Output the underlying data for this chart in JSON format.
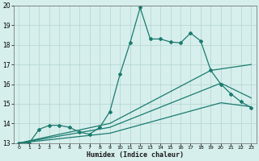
{
  "xlabel": "Humidex (Indice chaleur)",
  "xlim": [
    -0.5,
    23.5
  ],
  "ylim": [
    13,
    20
  ],
  "xticks": [
    0,
    1,
    2,
    3,
    4,
    5,
    6,
    7,
    8,
    9,
    10,
    11,
    12,
    13,
    14,
    15,
    16,
    17,
    18,
    19,
    20,
    21,
    22,
    23
  ],
  "yticks": [
    13,
    14,
    15,
    16,
    17,
    18,
    19,
    20
  ],
  "background_color": "#d6efec",
  "grid_color": "#b8d8d4",
  "line_color": "#1a7a6e",
  "line1_x": [
    0,
    1,
    2,
    3,
    4,
    5,
    6,
    7,
    8,
    9,
    10,
    11,
    12,
    13,
    14,
    15,
    16,
    17,
    18,
    19,
    20,
    21,
    22,
    23
  ],
  "line1_y": [
    13.0,
    13.0,
    13.7,
    13.9,
    13.9,
    13.8,
    13.55,
    13.45,
    13.8,
    14.6,
    16.5,
    18.1,
    19.9,
    18.3,
    18.3,
    18.15,
    18.1,
    18.6,
    18.2,
    16.7,
    16.0,
    15.5,
    15.1,
    14.8
  ],
  "line2_x": [
    0,
    9,
    19,
    23
  ],
  "line2_y": [
    13.0,
    14.0,
    16.7,
    17.0
  ],
  "line3_x": [
    0,
    9,
    20,
    23
  ],
  "line3_y": [
    13.0,
    13.8,
    16.05,
    15.3
  ],
  "line4_x": [
    0,
    9,
    20,
    23
  ],
  "line4_y": [
    13.0,
    13.5,
    15.05,
    14.85
  ]
}
